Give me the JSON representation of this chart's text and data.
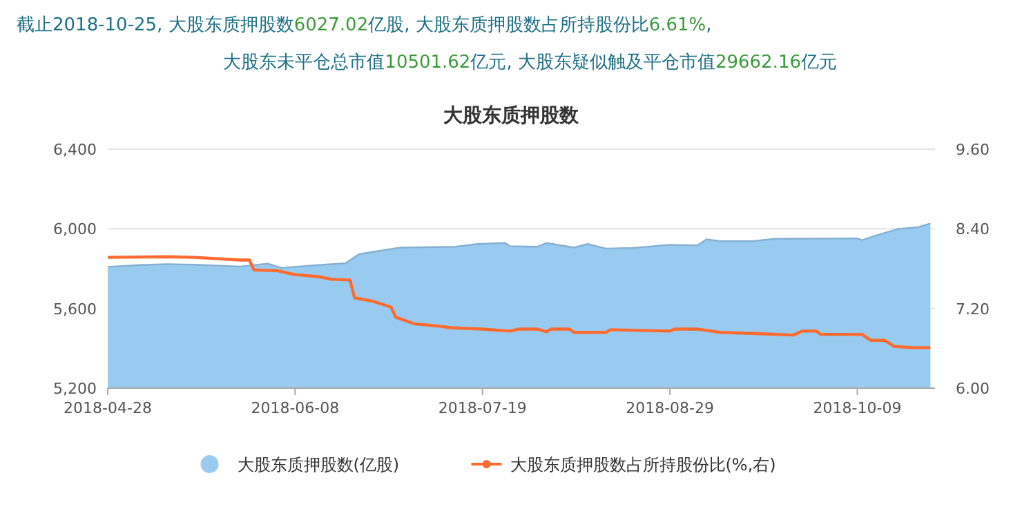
{
  "chart_data": {
    "type": "area",
    "title": "大股东质押股数",
    "annotations": [
      "截止2018-10-25, 大股东质押股数6027.02亿股, 大股东质押股数占所持股份比6.61%,",
      "大股东未平仓总市值10501.62亿元, 大股东疑似触及平仓市值29662.16亿元"
    ],
    "series": [
      {
        "name": "大股东质押股数(亿股)",
        "color": "#99cbf0",
        "x": [
          "2018-04-28",
          "2018-05-05",
          "2018-05-11",
          "2018-05-17",
          "2018-05-27",
          "2018-06-02",
          "2018-06-05",
          "2018-06-13",
          "2018-06-19",
          "2018-06-22",
          "2018-06-25",
          "2018-07-01",
          "2018-07-13",
          "2018-07-18",
          "2018-07-24",
          "2018-07-25",
          "2018-07-31",
          "2018-08-02",
          "2018-08-08",
          "2018-08-11",
          "2018-08-15",
          "2018-08-21",
          "2018-08-29",
          "2018-09-04",
          "2018-09-06",
          "2018-09-09",
          "2018-09-16",
          "2018-09-21",
          "2018-10-09",
          "2018-10-10",
          "2018-10-13",
          "2018-10-18",
          "2018-10-22",
          "2018-10-25"
        ],
        "values": [
          5809,
          5818,
          5823,
          5820,
          5811,
          5825,
          5804,
          5818,
          5827,
          5873,
          5884,
          5906,
          5910,
          5924,
          5929,
          5913,
          5910,
          5929,
          5906,
          5924,
          5901,
          5904,
          5920,
          5917,
          5947,
          5938,
          5938,
          5950,
          5952,
          5943,
          5966,
          6000,
          6007,
          6027
        ]
      },
      {
        "name": "大股东质押股数占所持股份比(%,右)",
        "type": "line",
        "axis": "y2",
        "color": "#ff6a2f",
        "x": [
          "2018-04-28",
          "2018-05-11",
          "2018-05-17",
          "2018-05-27",
          "2018-05-29",
          "2018-05-30",
          "2018-06-04",
          "2018-06-08",
          "2018-06-13",
          "2018-06-16",
          "2018-06-20",
          "2018-06-21",
          "2018-06-25",
          "2018-06-29",
          "2018-06-30",
          "2018-07-04",
          "2018-07-10",
          "2018-07-12",
          "2018-07-19",
          "2018-07-25",
          "2018-07-27",
          "2018-07-31",
          "2018-08-02",
          "2018-08-03",
          "2018-08-07",
          "2018-08-08",
          "2018-08-15",
          "2018-08-16",
          "2018-08-29",
          "2018-08-30",
          "2018-09-04",
          "2018-09-09",
          "2018-09-18",
          "2018-09-25",
          "2018-09-27",
          "2018-09-30",
          "2018-10-01",
          "2018-10-10",
          "2018-10-12",
          "2018-10-15",
          "2018-10-17",
          "2018-10-21",
          "2018-10-25"
        ],
        "values": [
          7.97,
          7.98,
          7.97,
          7.93,
          7.93,
          7.78,
          7.77,
          7.71,
          7.68,
          7.64,
          7.63,
          7.36,
          7.31,
          7.22,
          7.07,
          6.97,
          6.93,
          6.91,
          6.89,
          6.86,
          6.89,
          6.89,
          6.85,
          6.89,
          6.89,
          6.84,
          6.84,
          6.88,
          6.86,
          6.89,
          6.89,
          6.84,
          6.82,
          6.8,
          6.86,
          6.86,
          6.81,
          6.81,
          6.72,
          6.72,
          6.63,
          6.61,
          6.61
        ]
      }
    ],
    "xlim": [
      "2018-04-28",
      "2018-10-26"
    ],
    "xticks": [
      {
        "value": "2018-04-28",
        "label": "2018-04-28"
      },
      {
        "value": "2018-06-08",
        "label": "2018-06-08"
      },
      {
        "value": "2018-07-19",
        "label": "2018-07-19"
      },
      {
        "value": "2018-08-29",
        "label": "2018-08-29"
      },
      {
        "value": "2018-10-09",
        "label": "2018-10-09"
      }
    ],
    "ylim": [
      5200,
      6400
    ],
    "yticks": [
      {
        "value": 5200,
        "label": "5,200"
      },
      {
        "value": 5600,
        "label": "5,600"
      },
      {
        "value": 6000,
        "label": "6,000"
      },
      {
        "value": 6400,
        "label": "6,400"
      }
    ],
    "y2lim": [
      6,
      9.6
    ],
    "y2ticks": [
      {
        "value": 6,
        "label": "6.00"
      },
      {
        "value": 7.2,
        "label": "7.20"
      },
      {
        "value": 8.4,
        "label": "8.40"
      },
      {
        "value": 9.6,
        "label": "9.60"
      }
    ],
    "grid": "y",
    "legend": "bottom"
  }
}
